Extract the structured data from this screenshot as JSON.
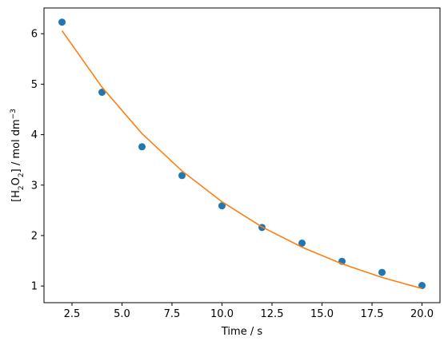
{
  "chart_data": {
    "type": "scatter",
    "xlabel": "Time / s",
    "ylabel": {
      "prefix": "[H",
      "sub1": "2",
      "mid": "O",
      "sub2": "2",
      "suffix": "] / mol dm",
      "sup": "−3"
    },
    "xlim": [
      1.1,
      20.9
    ],
    "ylim": [
      0.67,
      6.51
    ],
    "xticks": [
      2.5,
      5.0,
      7.5,
      10.0,
      12.5,
      15.0,
      17.5,
      20.0
    ],
    "xtick_labels": [
      "2.5",
      "5.0",
      "7.5",
      "10.0",
      "12.5",
      "15.0",
      "17.5",
      "20.0"
    ],
    "yticks": [
      1,
      2,
      3,
      4,
      5,
      6
    ],
    "ytick_labels": [
      "1",
      "2",
      "3",
      "4",
      "5",
      "6"
    ],
    "grid": false,
    "series": [
      {
        "kind": "scatter",
        "color": "#1f77b4",
        "x": [
          2,
          4,
          6,
          8,
          10,
          12,
          14,
          16,
          18,
          20
        ],
        "y": [
          6.23,
          4.84,
          3.76,
          3.19,
          2.59,
          2.16,
          1.85,
          1.49,
          1.27,
          1.01
        ]
      },
      {
        "kind": "line",
        "color": "#ff7f0e",
        "x": [
          2,
          4,
          6,
          8,
          10,
          12,
          14,
          16,
          18,
          20
        ],
        "y": [
          6.06,
          4.94,
          4.02,
          3.28,
          2.67,
          2.17,
          1.77,
          1.44,
          1.17,
          0.95
        ]
      }
    ]
  }
}
